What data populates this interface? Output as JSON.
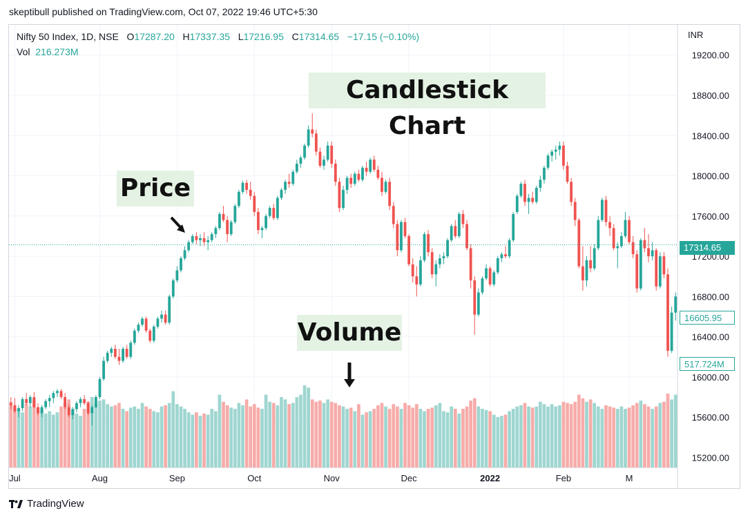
{
  "header": {
    "publish_line": "skeptibull published on TradingView.com, Oct 07, 2022 19:46 UTC+5:30"
  },
  "legend": {
    "symbol": "Nifty 50 Index, 1D, NSE",
    "o_label": "O",
    "o_value": "17287.20",
    "h_label": "H",
    "h_value": "17337.35",
    "l_label": "L",
    "l_value": "17216.95",
    "c_label": "C",
    "c_value": "17314.65",
    "change": "−17.15 (−0.10%)",
    "vol_label": "Vol",
    "vol_value": "216.273M"
  },
  "currency": "INR",
  "annotations": {
    "title": "Candlestick Chart",
    "price": "Price",
    "volume": "Volume"
  },
  "price_tags": {
    "last": "17314.65",
    "mid": "16605.95",
    "volume": "517.724M"
  },
  "footer": {
    "brand": "TradingView"
  },
  "colors": {
    "up": "#26a69a",
    "down": "#ef5350",
    "up_vol": "#9fd6d0",
    "down_vol": "#f6aca9",
    "grid": "#f0f3fa",
    "axis_text": "#131722"
  },
  "chart_data": {
    "type": "candlestick",
    "y_axis": {
      "min": 15100,
      "max": 19500,
      "ticks": [
        15200,
        15600,
        16000,
        16400,
        16800,
        17200,
        17600,
        18000,
        18400,
        18800,
        19200
      ]
    },
    "x_labels": [
      "Jul",
      "Aug",
      "Sep",
      "Oct",
      "Nov",
      "Dec",
      "2022",
      "Feb",
      "M"
    ],
    "x_label_index": [
      1,
      23,
      43,
      63,
      83,
      103,
      124,
      143,
      160
    ],
    "last_price_line": 17314.65,
    "candles": [
      [
        15740,
        15800,
        15680,
        15720,
        0.56
      ],
      [
        15720,
        15790,
        15640,
        15660,
        0.52
      ],
      [
        15660,
        15720,
        15600,
        15690,
        0.5
      ],
      [
        15690,
        15800,
        15660,
        15780,
        0.47
      ],
      [
        15780,
        15840,
        15720,
        15740,
        0.54
      ],
      [
        15740,
        15820,
        15700,
        15800,
        0.52
      ],
      [
        15800,
        15850,
        15690,
        15700,
        0.58
      ],
      [
        15700,
        15740,
        15620,
        15640,
        0.51
      ],
      [
        15640,
        15720,
        15600,
        15700,
        0.5
      ],
      [
        15700,
        15780,
        15680,
        15760,
        0.46
      ],
      [
        15760,
        15820,
        15700,
        15790,
        0.48
      ],
      [
        15790,
        15860,
        15740,
        15840,
        0.45
      ],
      [
        15840,
        15880,
        15800,
        15860,
        0.47
      ],
      [
        15860,
        15880,
        15780,
        15800,
        0.52
      ],
      [
        15800,
        15840,
        15680,
        15700,
        0.55
      ],
      [
        15700,
        15730,
        15600,
        15620,
        0.58
      ],
      [
        15620,
        15700,
        15580,
        15680,
        0.5
      ],
      [
        15680,
        15760,
        15650,
        15740,
        0.46
      ],
      [
        15740,
        15800,
        15700,
        15780,
        0.44
      ],
      [
        15780,
        15820,
        15720,
        15740,
        0.5
      ],
      [
        15740,
        15760,
        15620,
        15640,
        0.56
      ],
      [
        15640,
        15720,
        15520,
        15700,
        0.6
      ],
      [
        15700,
        15820,
        15690,
        15800,
        0.55
      ],
      [
        15800,
        16000,
        15780,
        15980,
        0.57
      ],
      [
        15980,
        16200,
        15960,
        16160,
        0.58
      ],
      [
        16160,
        16260,
        16140,
        16240,
        0.54
      ],
      [
        16240,
        16300,
        16200,
        16280,
        0.52
      ],
      [
        16280,
        16320,
        16180,
        16200,
        0.53
      ],
      [
        16200,
        16280,
        16120,
        16160,
        0.55
      ],
      [
        16160,
        16300,
        16140,
        16280,
        0.5
      ],
      [
        16280,
        16320,
        16180,
        16200,
        0.48
      ],
      [
        16200,
        16360,
        16180,
        16340,
        0.51
      ],
      [
        16340,
        16480,
        16320,
        16460,
        0.52
      ],
      [
        16460,
        16540,
        16440,
        16520,
        0.5
      ],
      [
        16520,
        16600,
        16500,
        16580,
        0.55
      ],
      [
        16580,
        16600,
        16440,
        16460,
        0.52
      ],
      [
        16460,
        16480,
        16340,
        16360,
        0.5
      ],
      [
        16360,
        16520,
        16340,
        16500,
        0.48
      ],
      [
        16500,
        16600,
        16480,
        16580,
        0.47
      ],
      [
        16580,
        16660,
        16540,
        16620,
        0.52
      ],
      [
        16620,
        16660,
        16520,
        16540,
        0.53
      ],
      [
        16540,
        16820,
        16520,
        16800,
        0.55
      ],
      [
        16800,
        16980,
        16780,
        16960,
        0.65
      ],
      [
        16960,
        17100,
        16940,
        17060,
        0.54
      ],
      [
        17060,
        17200,
        17040,
        17180,
        0.52
      ],
      [
        17180,
        17300,
        17160,
        17260,
        0.5
      ],
      [
        17260,
        17360,
        17240,
        17340,
        0.47
      ],
      [
        17340,
        17420,
        17320,
        17400,
        0.45
      ],
      [
        17400,
        17440,
        17320,
        17360,
        0.47
      ],
      [
        17360,
        17420,
        17300,
        17380,
        0.44
      ],
      [
        17380,
        17440,
        17300,
        17340,
        0.46
      ],
      [
        17340,
        17400,
        17260,
        17360,
        0.45
      ],
      [
        17360,
        17440,
        17340,
        17420,
        0.5
      ],
      [
        17420,
        17500,
        17380,
        17480,
        0.48
      ],
      [
        17480,
        17640,
        17460,
        17620,
        0.62
      ],
      [
        17620,
        17700,
        17540,
        17560,
        0.56
      ],
      [
        17560,
        17600,
        17340,
        17420,
        0.53
      ],
      [
        17420,
        17560,
        17400,
        17540,
        0.51
      ],
      [
        17540,
        17720,
        17520,
        17700,
        0.5
      ],
      [
        17700,
        17860,
        17680,
        17840,
        0.55
      ],
      [
        17840,
        17950,
        17820,
        17930,
        0.53
      ],
      [
        17930,
        17960,
        17820,
        17860,
        0.58
      ],
      [
        17860,
        17940,
        17760,
        17800,
        0.52
      ],
      [
        17800,
        17840,
        17600,
        17640,
        0.54
      ],
      [
        17640,
        17680,
        17420,
        17460,
        0.51
      ],
      [
        17460,
        17500,
        17380,
        17480,
        0.5
      ],
      [
        17480,
        17620,
        17460,
        17600,
        0.62
      ],
      [
        17600,
        17700,
        17580,
        17680,
        0.56
      ],
      [
        17680,
        17720,
        17560,
        17580,
        0.55
      ],
      [
        17580,
        17800,
        17560,
        17780,
        0.53
      ],
      [
        17780,
        17880,
        17760,
        17860,
        0.6
      ],
      [
        17860,
        17960,
        17820,
        17940,
        0.58
      ],
      [
        17940,
        18020,
        17880,
        17920,
        0.54
      ],
      [
        17920,
        18060,
        17900,
        18040,
        0.55
      ],
      [
        18040,
        18160,
        18020,
        18120,
        0.6
      ],
      [
        18120,
        18200,
        18080,
        18180,
        0.62
      ],
      [
        18180,
        18320,
        18160,
        18300,
        0.7
      ],
      [
        18300,
        18500,
        18280,
        18460,
        0.68
      ],
      [
        18460,
        18620,
        18380,
        18420,
        0.58
      ],
      [
        18420,
        18460,
        18200,
        18240,
        0.56
      ],
      [
        18240,
        18280,
        18080,
        18100,
        0.57
      ],
      [
        18100,
        18200,
        18060,
        18160,
        0.55
      ],
      [
        18160,
        18340,
        18140,
        18300,
        0.58
      ],
      [
        18300,
        18340,
        18080,
        18120,
        0.56
      ],
      [
        18120,
        18160,
        17900,
        17940,
        0.55
      ],
      [
        17940,
        17980,
        17640,
        17680,
        0.53
      ],
      [
        17680,
        17900,
        17660,
        17860,
        0.52
      ],
      [
        17860,
        18000,
        17820,
        17980,
        0.5
      ],
      [
        17980,
        18020,
        17880,
        17920,
        0.51
      ],
      [
        17920,
        18040,
        17900,
        18020,
        0.48
      ],
      [
        18020,
        18060,
        17940,
        17960,
        0.54
      ],
      [
        17960,
        18100,
        17940,
        18080,
        0.45
      ],
      [
        18080,
        18140,
        18000,
        18040,
        0.47
      ],
      [
        18040,
        18180,
        18020,
        18160,
        0.48
      ],
      [
        18160,
        18200,
        18040,
        18060,
        0.5
      ],
      [
        18060,
        18100,
        17960,
        17980,
        0.53
      ],
      [
        17980,
        18040,
        17800,
        17840,
        0.55
      ],
      [
        17840,
        17960,
        17820,
        17940,
        0.52
      ],
      [
        17940,
        17980,
        17660,
        17700,
        0.5
      ],
      [
        17700,
        17740,
        17480,
        17520,
        0.54
      ],
      [
        17520,
        17560,
        17200,
        17260,
        0.52
      ],
      [
        17260,
        17560,
        17240,
        17540,
        0.5
      ],
      [
        17540,
        17580,
        17380,
        17400,
        0.55
      ],
      [
        17400,
        17420,
        17100,
        17120,
        0.53
      ],
      [
        17120,
        17180,
        16940,
        17000,
        0.51
      ],
      [
        17000,
        17100,
        16800,
        16920,
        0.54
      ],
      [
        16920,
        17200,
        16900,
        17160,
        0.5
      ],
      [
        17160,
        17440,
        17140,
        17420,
        0.48
      ],
      [
        17420,
        17460,
        17200,
        17240,
        0.5
      ],
      [
        17240,
        17280,
        16980,
        17020,
        0.51
      ],
      [
        17020,
        17160,
        16900,
        17120,
        0.53
      ],
      [
        17120,
        17220,
        17080,
        17180,
        0.55
      ],
      [
        17180,
        17240,
        17120,
        17200,
        0.48
      ],
      [
        17200,
        17380,
        17180,
        17360,
        0.47
      ],
      [
        17360,
        17520,
        17340,
        17500,
        0.52
      ],
      [
        17500,
        17560,
        17380,
        17400,
        0.5
      ],
      [
        17400,
        17640,
        17380,
        17620,
        0.46
      ],
      [
        17620,
        17660,
        17480,
        17520,
        0.5
      ],
      [
        17520,
        17560,
        17260,
        17280,
        0.52
      ],
      [
        17280,
        17320,
        16880,
        16960,
        0.57
      ],
      [
        16960,
        17000,
        16420,
        16620,
        0.59
      ],
      [
        16620,
        16880,
        16600,
        16840,
        0.52
      ],
      [
        16840,
        17000,
        16820,
        16980,
        0.5
      ],
      [
        16980,
        17120,
        16960,
        17080,
        0.49
      ],
      [
        17080,
        17100,
        16900,
        16920,
        0.48
      ],
      [
        16920,
        17060,
        16900,
        17040,
        0.45
      ],
      [
        17040,
        17200,
        17020,
        17180,
        0.43
      ],
      [
        17180,
        17240,
        17140,
        17220,
        0.44
      ],
      [
        17220,
        17300,
        17180,
        17200,
        0.45
      ],
      [
        17200,
        17380,
        17180,
        17360,
        0.48
      ],
      [
        17360,
        17640,
        17340,
        17620,
        0.5
      ],
      [
        17640,
        17820,
        17620,
        17800,
        0.52
      ],
      [
        17800,
        17940,
        17780,
        17920,
        0.53
      ],
      [
        17920,
        17960,
        17700,
        17740,
        0.55
      ],
      [
        17740,
        17820,
        17620,
        17780,
        0.52
      ],
      [
        17780,
        17840,
        17720,
        17740,
        0.51
      ],
      [
        17740,
        17900,
        17720,
        17880,
        0.52
      ],
      [
        17880,
        18000,
        17840,
        17960,
        0.56
      ],
      [
        17960,
        18100,
        17920,
        18080,
        0.54
      ],
      [
        18080,
        18220,
        18060,
        18200,
        0.52
      ],
      [
        18200,
        18260,
        18140,
        18240,
        0.54
      ],
      [
        18240,
        18300,
        18160,
        18260,
        0.52
      ],
      [
        18260,
        18340,
        18200,
        18300,
        0.53
      ],
      [
        18300,
        18340,
        18060,
        18100,
        0.56
      ],
      [
        18100,
        18140,
        17920,
        17940,
        0.55
      ],
      [
        17940,
        17980,
        17700,
        17740,
        0.54
      ],
      [
        17740,
        17780,
        17500,
        17560,
        0.56
      ],
      [
        17560,
        17580,
        17080,
        17100,
        0.62
      ],
      [
        17100,
        17300,
        16860,
        16960,
        0.59
      ],
      [
        16960,
        17200,
        16900,
        17160,
        0.56
      ],
      [
        17160,
        17300,
        17040,
        17080,
        0.58
      ],
      [
        17080,
        17320,
        17060,
        17280,
        0.55
      ],
      [
        17280,
        17600,
        17260,
        17560,
        0.52
      ],
      [
        17560,
        17780,
        17540,
        17760,
        0.5
      ],
      [
        17760,
        17800,
        17500,
        17540,
        0.53
      ],
      [
        17540,
        17600,
        17400,
        17480,
        0.52
      ],
      [
        17480,
        17520,
        17260,
        17280,
        0.51
      ],
      [
        17280,
        17340,
        17080,
        17300,
        0.5
      ],
      [
        17300,
        17440,
        17280,
        17400,
        0.52
      ],
      [
        17400,
        17640,
        17380,
        17560,
        0.5
      ],
      [
        17560,
        17600,
        17320,
        17340,
        0.51
      ],
      [
        17340,
        17400,
        17180,
        17220,
        0.53
      ],
      [
        17220,
        17260,
        16840,
        16880,
        0.55
      ],
      [
        16880,
        17380,
        16860,
        17360,
        0.57
      ],
      [
        17360,
        17480,
        17240,
        17280,
        0.54
      ],
      [
        17280,
        17420,
        17140,
        17200,
        0.52
      ],
      [
        17200,
        17340,
        17160,
        17260,
        0.5
      ],
      [
        17260,
        17280,
        16860,
        16900,
        0.52
      ],
      [
        16900,
        17240,
        16880,
        17200,
        0.55
      ],
      [
        17200,
        17240,
        16980,
        17020,
        0.56
      ],
      [
        17020,
        17080,
        16200,
        16260,
        0.63
      ],
      [
        16260,
        16700,
        16240,
        16640,
        0.58
      ],
      [
        16640,
        16840,
        16560,
        16800,
        0.62
      ]
    ]
  }
}
